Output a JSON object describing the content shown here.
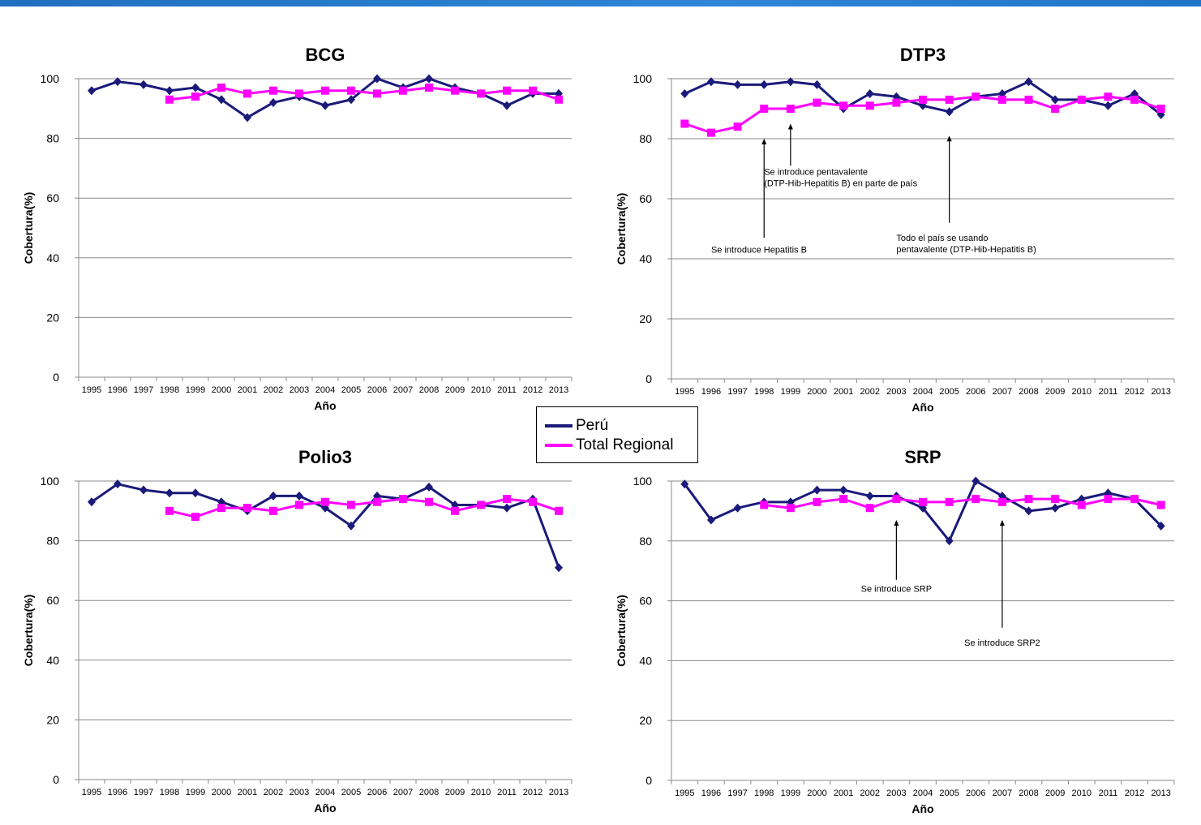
{
  "header": {
    "bar_color": "#2a7fd0"
  },
  "legend": {
    "items": [
      {
        "label": "Perú",
        "color": "#1a1a7a"
      },
      {
        "label": "Total Regional",
        "color": "#ff00ff"
      }
    ]
  },
  "chart_data": [
    {
      "type": "line",
      "title": "BCG",
      "xlabel": "Año",
      "ylabel": "Cobertura(%)",
      "ylim": [
        0,
        100
      ],
      "yticks": [
        0,
        20,
        40,
        60,
        80,
        100
      ],
      "grid": true,
      "categories": [
        "1995",
        "1996",
        "1997",
        "1998",
        "1999",
        "2000",
        "2001",
        "2002",
        "2003",
        "2004",
        "2005",
        "2006",
        "2007",
        "2008",
        "2009",
        "2010",
        "2011",
        "2012",
        "2013"
      ],
      "series": [
        {
          "name": "Perú",
          "color": "#1a1a7a",
          "marker": "diamond",
          "values": [
            96,
            99,
            98,
            96,
            97,
            93,
            87,
            92,
            94,
            91,
            93,
            100,
            97,
            100,
            97,
            95,
            91,
            95,
            95
          ]
        },
        {
          "name": "Total Regional",
          "color": "#ff00ff",
          "marker": "square",
          "values": [
            null,
            null,
            null,
            93,
            94,
            97,
            95,
            96,
            95,
            96,
            96,
            95,
            96,
            97,
            96,
            95,
            96,
            96,
            93
          ]
        }
      ],
      "annotations": []
    },
    {
      "type": "line",
      "title": "DTP3",
      "xlabel": "Año",
      "ylabel": "Cobertura(%)",
      "ylim": [
        0,
        100
      ],
      "yticks": [
        0,
        20,
        40,
        60,
        80,
        100
      ],
      "grid": true,
      "categories": [
        "1995",
        "1996",
        "1997",
        "1998",
        "1999",
        "2000",
        "2001",
        "2002",
        "2003",
        "2004",
        "2005",
        "2006",
        "2007",
        "2008",
        "2009",
        "2010",
        "2011",
        "2012",
        "2013"
      ],
      "series": [
        {
          "name": "Perú",
          "color": "#1a1a7a",
          "marker": "diamond",
          "values": [
            95,
            99,
            98,
            98,
            99,
            98,
            90,
            95,
            94,
            91,
            89,
            94,
            95,
            99,
            93,
            93,
            91,
            95,
            88
          ]
        },
        {
          "name": "Total Regional",
          "color": "#ff00ff",
          "marker": "square",
          "values": [
            85,
            82,
            84,
            90,
            90,
            92,
            91,
            91,
            92,
            93,
            93,
            94,
            93,
            93,
            90,
            93,
            94,
            93,
            90
          ]
        }
      ],
      "annotations": [
        {
          "text": [
            "Se introduce Hepatitis B"
          ],
          "x": "1998",
          "arrow_from": 47,
          "arrow_to": 80,
          "text_y": 42,
          "text_x_offset": -2
        },
        {
          "text": [
            "Se introduce pentavalente",
            "(DTP-Hib-Hepatitis B) en parte de país"
          ],
          "x": "1999",
          "arrow_from": 71,
          "arrow_to": 85,
          "text_y": 68,
          "text_x_offset": -1
        },
        {
          "text": [
            "Todo el país se usando",
            "pentavalente (DTP-Hib-Hepatitis B)"
          ],
          "x": "2005",
          "arrow_from": 52,
          "arrow_to": 81,
          "text_y": 46,
          "text_x_offset": -2
        }
      ]
    },
    {
      "type": "line",
      "title": "Polio3",
      "xlabel": "Año",
      "ylabel": "Cobertura(%)",
      "ylim": [
        0,
        100
      ],
      "yticks": [
        0,
        20,
        40,
        60,
        80,
        100
      ],
      "grid": true,
      "categories": [
        "1995",
        "1996",
        "1997",
        "1998",
        "1999",
        "2000",
        "2001",
        "2002",
        "2003",
        "2004",
        "2005",
        "2006",
        "2007",
        "2008",
        "2009",
        "2010",
        "2011",
        "2012",
        "2013"
      ],
      "series": [
        {
          "name": "Perú",
          "color": "#1a1a7a",
          "marker": "diamond",
          "values": [
            93,
            99,
            97,
            96,
            96,
            93,
            90,
            95,
            95,
            91,
            85,
            95,
            94,
            98,
            92,
            92,
            91,
            94,
            71
          ]
        },
        {
          "name": "Total Regional",
          "color": "#ff00ff",
          "marker": "square",
          "values": [
            null,
            null,
            null,
            90,
            88,
            91,
            91,
            90,
            92,
            93,
            92,
            93,
            94,
            93,
            90,
            92,
            94,
            93,
            90
          ]
        }
      ],
      "annotations": []
    },
    {
      "type": "line",
      "title": "SRP",
      "xlabel": "Año",
      "ylabel": "Cobertura(%)",
      "ylim": [
        0,
        100
      ],
      "yticks": [
        0,
        20,
        40,
        60,
        80,
        100
      ],
      "grid": true,
      "categories": [
        "1995",
        "1996",
        "1997",
        "1998",
        "1999",
        "2000",
        "2001",
        "2002",
        "2003",
        "2004",
        "2005",
        "2006",
        "2007",
        "2008",
        "2009",
        "2010",
        "2011",
        "2012",
        "2013"
      ],
      "series": [
        {
          "name": "Perú",
          "color": "#1a1a7a",
          "marker": "diamond",
          "values": [
            99,
            87,
            91,
            93,
            93,
            97,
            97,
            95,
            95,
            91,
            80,
            100,
            95,
            90,
            91,
            94,
            96,
            94,
            85
          ]
        },
        {
          "name": "Total Regional",
          "color": "#ff00ff",
          "marker": "square",
          "values": [
            null,
            null,
            null,
            92,
            91,
            93,
            94,
            91,
            94,
            93,
            93,
            94,
            93,
            94,
            94,
            92,
            94,
            94,
            92
          ]
        }
      ],
      "annotations": [
        {
          "text": [
            "Se introduce SRP"
          ],
          "x": "2003",
          "arrow_from": 67,
          "arrow_to": 87,
          "text_y": 63,
          "text_x_offset": 0
        },
        {
          "text": [
            "Se introduce SRP2"
          ],
          "x": "2007",
          "arrow_from": 51,
          "arrow_to": 87,
          "text_y": 45,
          "text_x_offset": 0
        }
      ]
    }
  ]
}
